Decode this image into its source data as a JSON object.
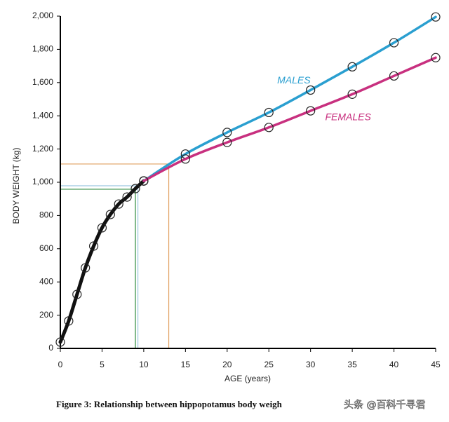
{
  "chart_data": {
    "type": "line",
    "y_label": "BODY WEIGHT (kg)",
    "x_label": "AGE (years)",
    "caption": "Figure 3:  Relationship between hippopotamus body weigh",
    "watermark": "头条 @百科千寻君",
    "xlim": [
      0,
      45
    ],
    "xticks": [
      0,
      5,
      10,
      15,
      20,
      25,
      30,
      35,
      40,
      45
    ],
    "ylim": [
      0,
      2000
    ],
    "yticks": [
      0,
      200,
      400,
      600,
      800,
      {
        "value": 1000,
        "label": "1,000"
      },
      {
        "value": 1200,
        "label": "1,200"
      },
      {
        "value": 1400,
        "label": "1,400"
      },
      {
        "value": 1600,
        "label": "1,600"
      },
      {
        "value": 1800,
        "label": "1,800"
      },
      {
        "value": 2000,
        "label": "2,000"
      }
    ],
    "series": [
      {
        "color": "#111111",
        "x": [
          0,
          1,
          2,
          3,
          4,
          5,
          6,
          7,
          8,
          9,
          10
        ],
        "values": [
          38,
          165,
          325,
          485,
          616,
          726,
          806,
          869,
          911,
          962,
          1008
        ]
      },
      {
        "name": "MALES",
        "color": "#2a9fd0",
        "x": [
          10,
          15,
          20,
          25,
          30,
          35,
          40,
          45
        ],
        "values": [
          1008,
          1170,
          1300,
          1420,
          1555,
          1695,
          1840,
          1995
        ]
      },
      {
        "name": "FEMALES",
        "color": "#c8307f",
        "x": [
          10,
          15,
          20,
          25,
          30,
          35,
          40,
          45
        ],
        "values": [
          1008,
          1140,
          1240,
          1330,
          1430,
          1530,
          1640,
          1750
        ]
      }
    ],
    "reference_lines": [
      {
        "x": 13,
        "y": 1110,
        "color": "#e0a060"
      },
      {
        "x": 9.3,
        "y": 979,
        "color": "#9cc8e0"
      },
      {
        "x": 9,
        "y": 958,
        "color": "#2e8b3e"
      }
    ]
  }
}
